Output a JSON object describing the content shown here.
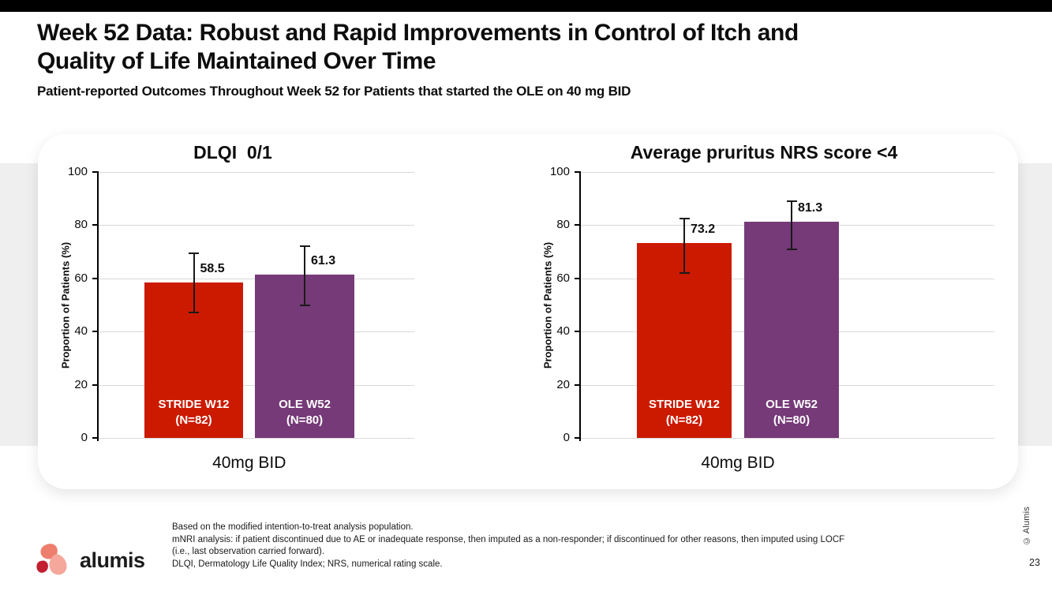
{
  "slide": {
    "title_lines": [
      "Week 52 Data: Robust and Rapid Improvements in Control of Itch and",
      "Quality of Life Maintained Over Time"
    ],
    "subtitle": "Patient-reported Outcomes Throughout Week 52 for Patients that started the OLE on 40 mg BID",
    "page_number": "23",
    "side_copyright": "© Alumis",
    "logo_text": "alumis"
  },
  "footnotes": [
    "Based on the modified intention-to-treat analysis population.",
    "mNRI analysis: if patient discontinued due to AE or inadequate response, then imputed as a non-responder; if discontinued for other reasons, then imputed using LOCF",
    "(i.e., last observation carried forward).",
    "DLQI, Dermatology Life Quality Index; NRS, numerical rating scale."
  ],
  "colors": {
    "bar_red": "#CC1A00",
    "bar_purple": "#763A78",
    "grid": "#d9d9d9",
    "band": "#efefef",
    "topbar": "#000000",
    "logo_salmon": "#EE7F6E",
    "logo_dark_red": "#C21F30",
    "logo_pink": "#F5A79C"
  },
  "chart_data": [
    {
      "type": "bar",
      "title": "DLQI  0/1",
      "ylabel": "Proportion of Patients (%)",
      "xlabel": "40mg BID",
      "ylim": [
        0,
        100
      ],
      "yticks": [
        0,
        20,
        40,
        60,
        80,
        100
      ],
      "grid": true,
      "bars": [
        {
          "category": "STRIDE W12",
          "subcategory": "(N=82)",
          "value": 58.5,
          "ci_low": 47.3,
          "ci_high": 69.5,
          "color": "#CC1A00"
        },
        {
          "category": "OLE W52",
          "subcategory": "(N=80)",
          "value": 61.3,
          "ci_low": 49.8,
          "ci_high": 72.0,
          "color": "#763A78"
        }
      ]
    },
    {
      "type": "bar",
      "title": "Average pruritus NRS score <4",
      "ylabel": "Proportion of Patients (%)",
      "xlabel": "40mg BID",
      "ylim": [
        0,
        100
      ],
      "yticks": [
        0,
        20,
        40,
        60,
        80,
        100
      ],
      "grid": true,
      "bars": [
        {
          "category": "STRIDE W12",
          "subcategory": "(N=82)",
          "value": 73.2,
          "ci_low": 62.0,
          "ci_high": 82.5,
          "color": "#CC1A00"
        },
        {
          "category": "OLE W52",
          "subcategory": "(N=80)",
          "value": 81.3,
          "ci_low": 71.0,
          "ci_high": 89.0,
          "color": "#763A78"
        }
      ]
    }
  ]
}
